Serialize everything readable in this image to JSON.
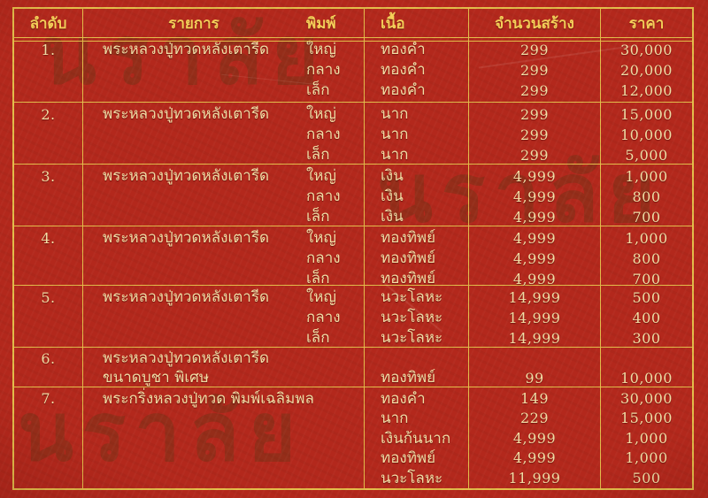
{
  "document_type": "amulet-price-list",
  "colors": {
    "background_red": "#b3281c",
    "grid_gold": "#e3bd4a",
    "header_text_gold": "#f5cf58",
    "body_text_cream": "#f2dfa6",
    "watermark_brown": "#68341680"
  },
  "watermark": {
    "text": "นราลัย"
  },
  "table": {
    "headers": {
      "no": "ลำดับ",
      "item": "รายการ",
      "print": "พิมพ์",
      "material": "เนื้อ",
      "quantity": "จำนวนสร้าง",
      "price": "ราคา"
    },
    "groups": [
      {
        "no": "1.",
        "item": "พระหลวงปู่ทวดหลังเตารีด",
        "rows": [
          {
            "print": "ใหญ่",
            "material": "ทองคำ",
            "quantity": "299",
            "price": "30,000"
          },
          {
            "print": "กลาง",
            "material": "ทองคำ",
            "quantity": "299",
            "price": "20,000"
          },
          {
            "print": "เล็ก",
            "material": "ทองคำ",
            "quantity": "299",
            "price": "12,000"
          }
        ]
      },
      {
        "no": "2.",
        "item": "พระหลวงปู่ทวดหลังเตารีด",
        "rows": [
          {
            "print": "ใหญ่",
            "material": "นาก",
            "quantity": "299",
            "price": "15,000"
          },
          {
            "print": "กลาง",
            "material": "นาก",
            "quantity": "299",
            "price": "10,000"
          },
          {
            "print": "เล็ก",
            "material": "นาก",
            "quantity": "299",
            "price": "5,000"
          }
        ]
      },
      {
        "no": "3.",
        "item": "พระหลวงปู่ทวดหลังเตารีด",
        "rows": [
          {
            "print": "ใหญ่",
            "material": "เงิน",
            "quantity": "4,999",
            "price": "1,000"
          },
          {
            "print": "กลาง",
            "material": "เงิน",
            "quantity": "4,999",
            "price": "800"
          },
          {
            "print": "เล็ก",
            "material": "เงิน",
            "quantity": "4,999",
            "price": "700"
          }
        ]
      },
      {
        "no": "4.",
        "item": "พระหลวงปู่ทวดหลังเตารีด",
        "rows": [
          {
            "print": "ใหญ่",
            "material": "ทองทิพย์",
            "quantity": "4,999",
            "price": "1,000"
          },
          {
            "print": "กลาง",
            "material": "ทองทิพย์",
            "quantity": "4,999",
            "price": "800"
          },
          {
            "print": "เล็ก",
            "material": "ทองทิพย์",
            "quantity": "4,999",
            "price": "700"
          }
        ]
      },
      {
        "no": "5.",
        "item": "พระหลวงปู่ทวดหลังเตารีด",
        "rows": [
          {
            "print": "ใหญ่",
            "material": "นวะโลหะ",
            "quantity": "14,999",
            "price": "500"
          },
          {
            "print": "กลาง",
            "material": "นวะโลหะ",
            "quantity": "14,999",
            "price": "400"
          },
          {
            "print": "เล็ก",
            "material": "นวะโลหะ",
            "quantity": "14,999",
            "price": "300"
          }
        ]
      },
      {
        "no": "6.",
        "item": "พระหลวงปู่ทวดหลังเตารีด",
        "item_line2": "ขนาดบูชา พิเศษ",
        "rows": [
          {
            "print": "",
            "material": "ทองทิพย์",
            "quantity": "99",
            "price": "10,000"
          }
        ]
      },
      {
        "no": "7.",
        "item": "พระกริ่งหลวงปู่ทวด พิมพ์เฉลิมพล",
        "rows": [
          {
            "print": "",
            "material": "ทองคำ",
            "quantity": "149",
            "price": "30,000"
          },
          {
            "print": "",
            "material": "นาก",
            "quantity": "229",
            "price": "15,000"
          },
          {
            "print": "",
            "material": "เงินก้นนาก",
            "quantity": "4,999",
            "price": "1,000"
          },
          {
            "print": "",
            "material": "ทองทิพย์",
            "quantity": "4,999",
            "price": "1,000"
          },
          {
            "print": "",
            "material": "นวะโลหะ",
            "quantity": "11,999",
            "price": "500"
          }
        ]
      }
    ]
  }
}
